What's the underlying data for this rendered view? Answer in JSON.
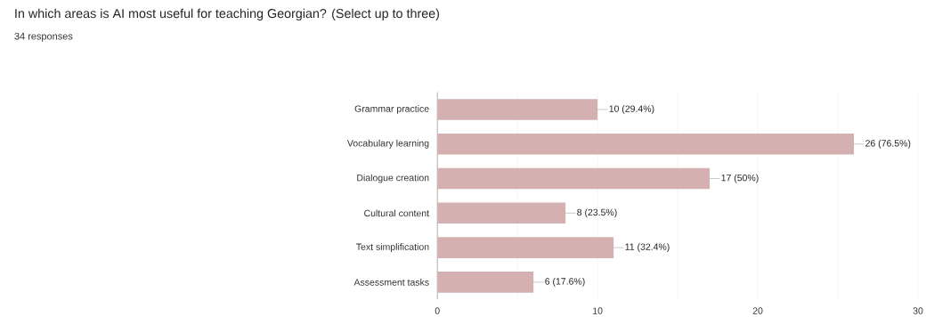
{
  "chart_data": {
    "type": "bar",
    "orientation": "horizontal",
    "title": "In which areas is AI most useful for teaching Georgian? (Select up to three)",
    "subtitle": "34 responses",
    "categories": [
      "Grammar practice",
      "Vocabulary learning",
      "Dialogue creation",
      "Cultural content",
      "Text simplification",
      "Assessment tasks"
    ],
    "values": [
      10,
      26,
      17,
      8,
      11,
      6
    ],
    "value_labels": [
      "10 (29.4%)",
      "26 (76.5%)",
      "17 (50%)",
      "8 (23.5%)",
      "11 (32.4%)",
      "6 (17.6%)"
    ],
    "color": "#d5b0b0",
    "xlim": [
      0,
      30
    ],
    "xticks": [
      0,
      {
        "value": 5,
        "label": null
      },
      10,
      {
        "value": 15,
        "label": null
      },
      20,
      {
        "value": 25,
        "label": null
      },
      30
    ],
    "grid": "x"
  }
}
